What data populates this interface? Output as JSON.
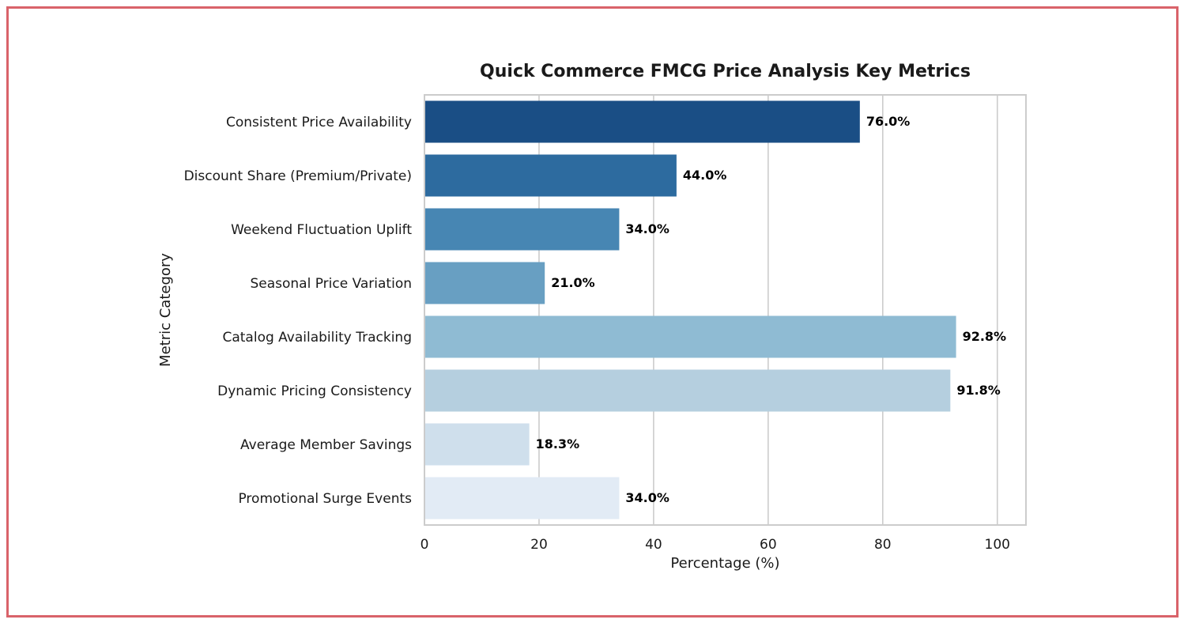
{
  "chart_data": {
    "type": "bar",
    "orientation": "horizontal",
    "title": "Quick Commerce FMCG Price Analysis Key Metrics",
    "xlabel": "Percentage (%)",
    "ylabel": "Metric Category",
    "xlim": [
      0,
      105
    ],
    "xticks": [
      0,
      20,
      40,
      60,
      80,
      100
    ],
    "grid": "vertical",
    "categories": [
      "Consistent Price Availability",
      "Discount Share (Premium/Private)",
      "Weekend Fluctuation Uplift",
      "Seasonal Price Variation",
      "Catalog Availability Tracking",
      "Dynamic Pricing Consistency",
      "Average Member Savings",
      "Promotional Surge Events"
    ],
    "values": [
      76.0,
      44.0,
      34.0,
      21.0,
      92.8,
      91.8,
      18.3,
      34.0
    ],
    "value_labels": [
      "76.0%",
      "44.0%",
      "34.0%",
      "21.0%",
      "92.8%",
      "91.8%",
      "18.3%",
      "34.0%"
    ],
    "colors": [
      "#1a4e85",
      "#2d6b9f",
      "#4786b3",
      "#689fc2",
      "#8fbbd3",
      "#b5cfdf",
      "#cfdfec",
      "#e2ebf5"
    ]
  },
  "frame_color": "#d9636a"
}
